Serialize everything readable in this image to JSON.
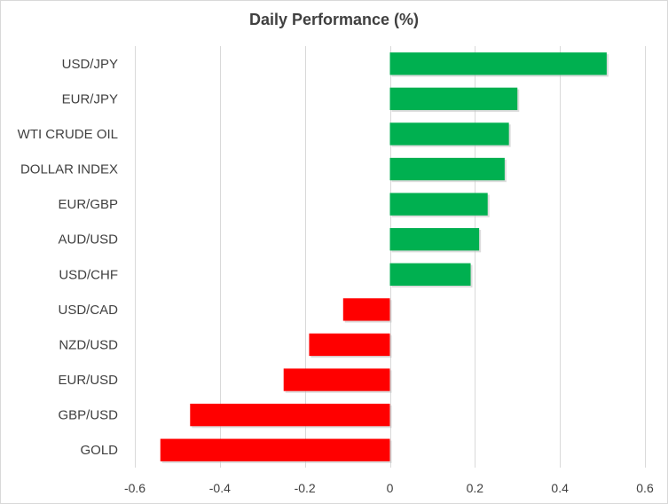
{
  "chart_data": {
    "type": "bar",
    "orientation": "horizontal",
    "title": "Daily Performance (%)",
    "xlabel": "",
    "ylabel": "",
    "xlim": [
      -0.6,
      0.6
    ],
    "xticks": [
      -0.6,
      -0.4,
      -0.2,
      0,
      0.2,
      0.4,
      0.6
    ],
    "xtick_labels": [
      "-0.6",
      "-0.4",
      "-0.2",
      "0",
      "0.2",
      "0.4",
      "0.6"
    ],
    "grid": "vertical",
    "legend": "none",
    "categories": [
      "USD/JPY",
      "EUR/JPY",
      "WTI CRUDE OIL",
      "DOLLAR INDEX",
      "EUR/GBP",
      "AUD/USD",
      "USD/CHF",
      "USD/CAD",
      "NZD/USD",
      "EUR/USD",
      "GBP/USD",
      "GOLD"
    ],
    "values": [
      0.51,
      0.3,
      0.28,
      0.27,
      0.23,
      0.21,
      0.19,
      -0.11,
      -0.19,
      -0.25,
      -0.47,
      -0.54
    ],
    "colors": {
      "positive": "#00b050",
      "negative": "#ff0000",
      "grid": "#d9d9d9",
      "text": "#404040"
    }
  }
}
